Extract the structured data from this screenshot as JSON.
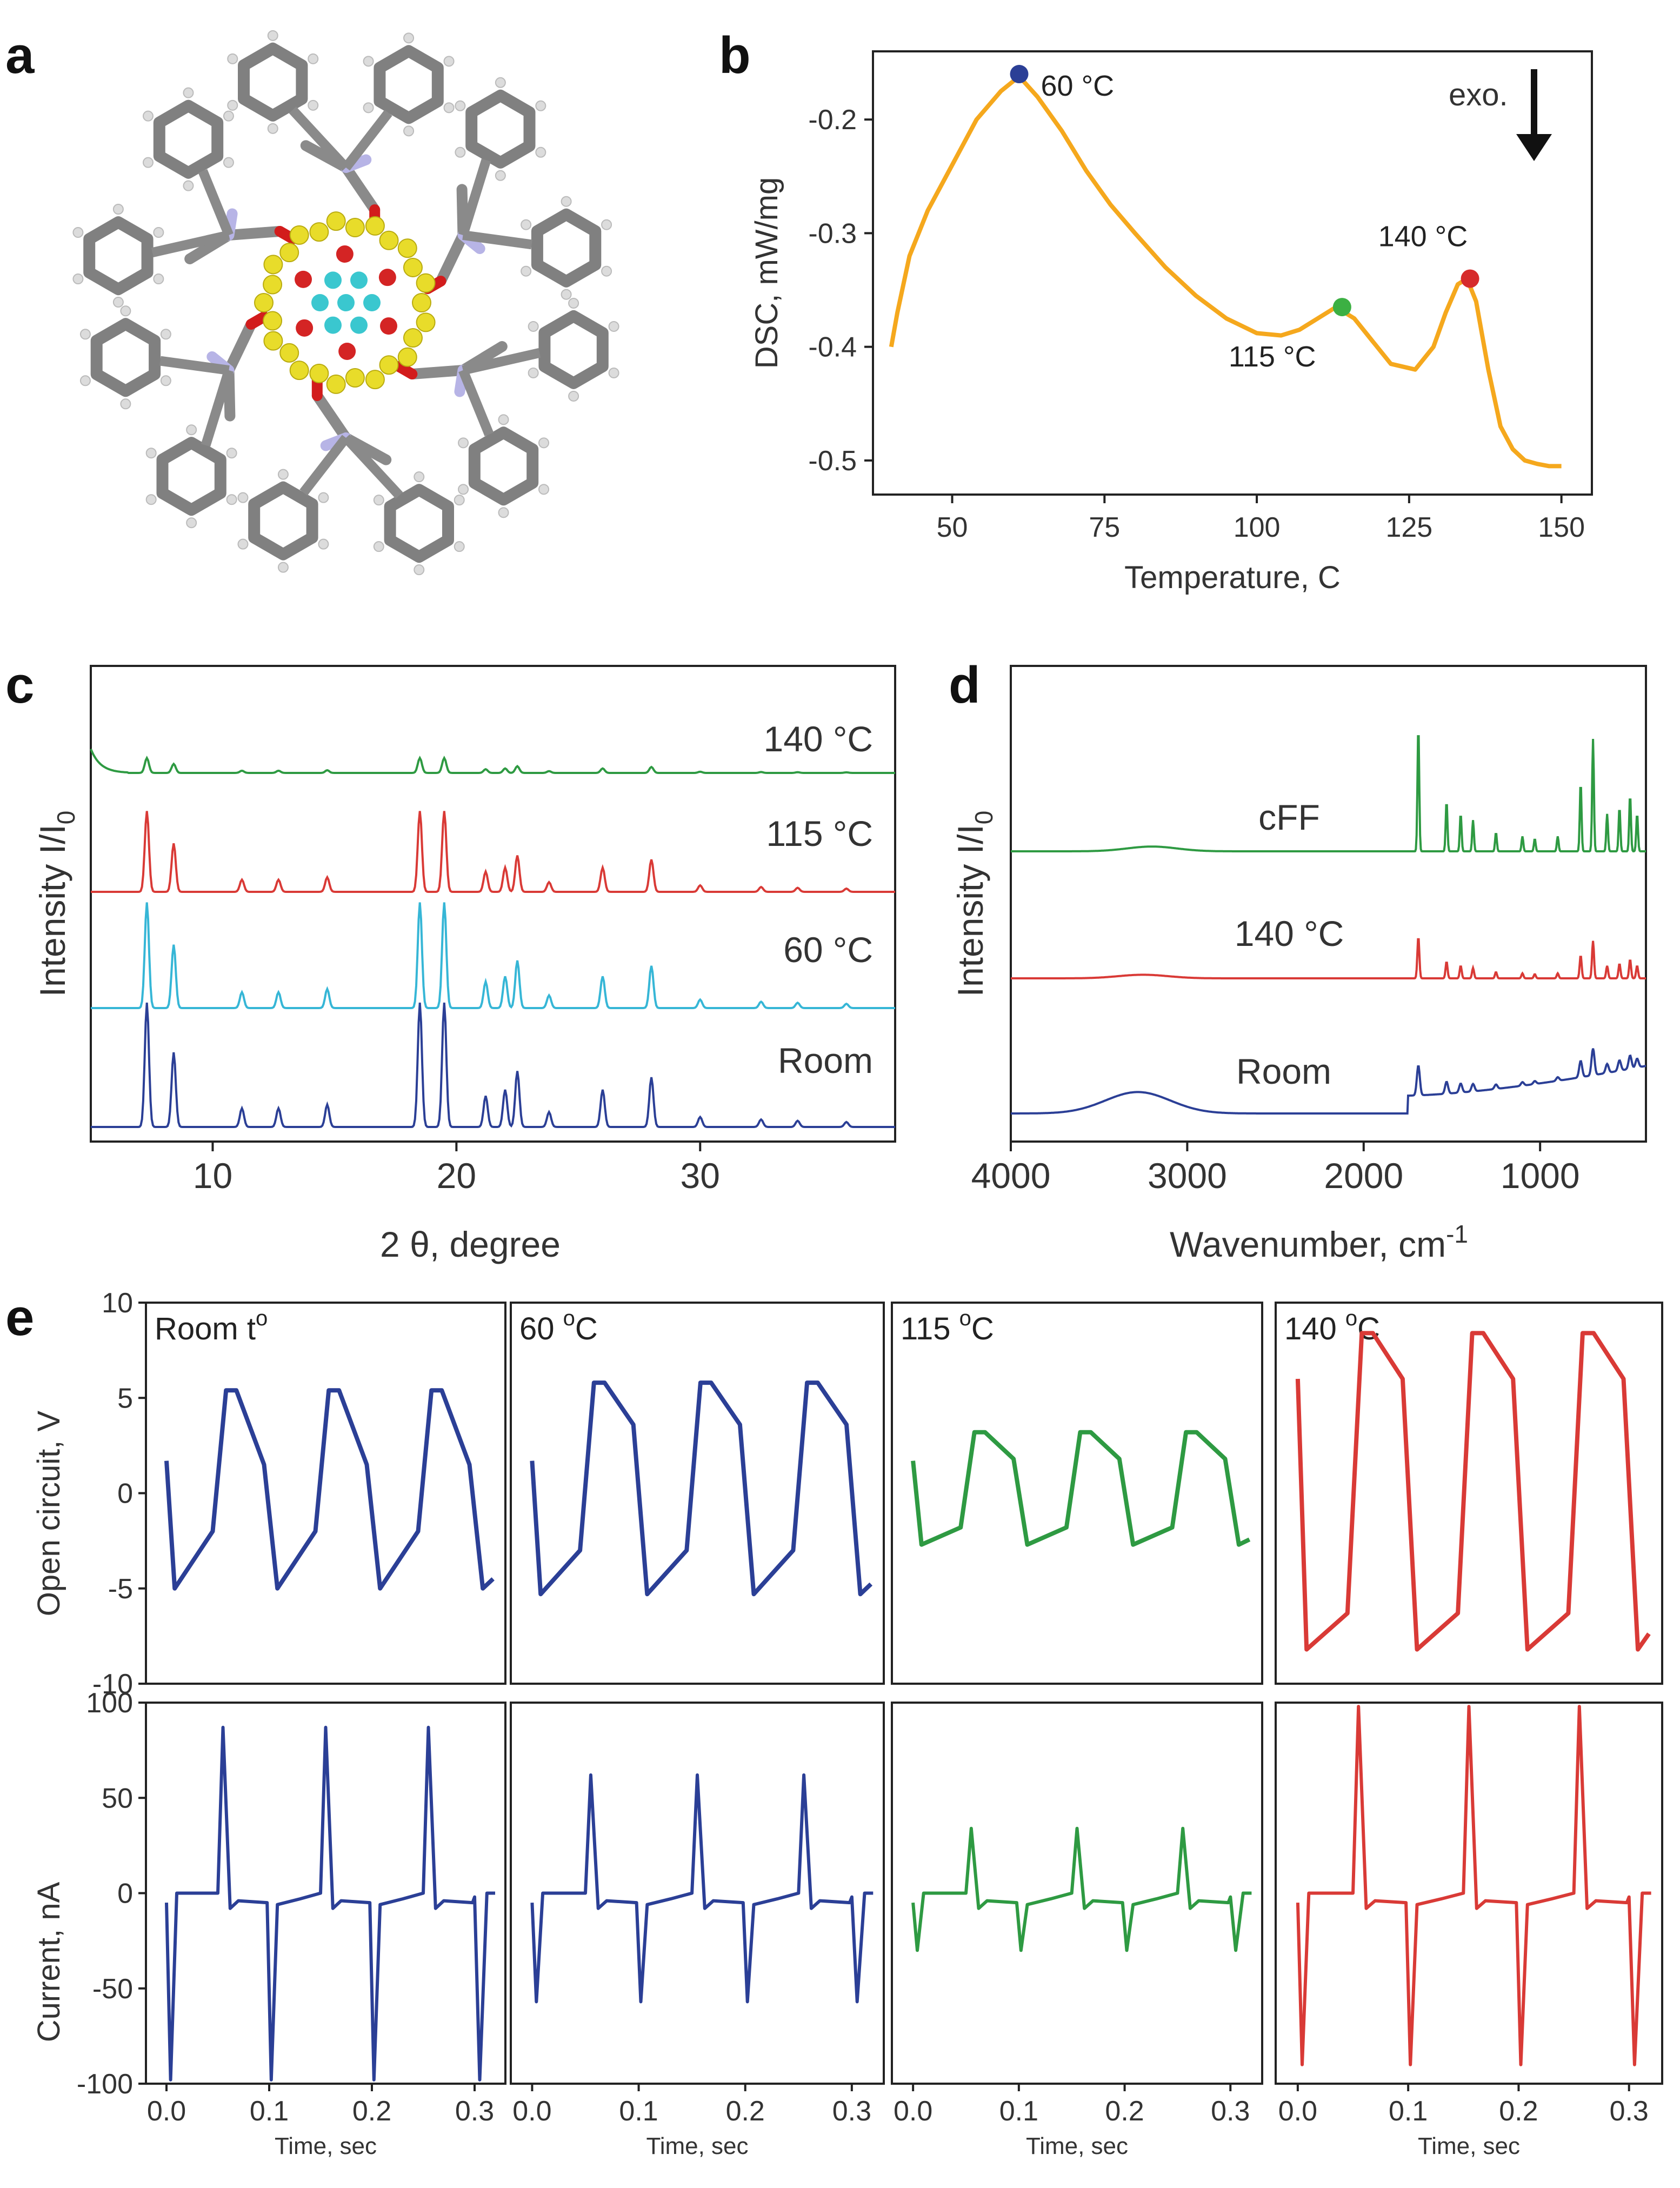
{
  "panels": {
    "a": "a",
    "b": "b",
    "c": "c",
    "d": "d",
    "e": "e"
  },
  "colors": {
    "blue": "#2b3f96",
    "cyan": "#36b6d6",
    "green": "#2e9a42",
    "red": "#d93a36",
    "orange": "#f5a81d",
    "blue_dot": "#2b3f96",
    "green_dot": "#3cb043",
    "red_dot": "#d62b2b"
  },
  "chart_data": [
    {
      "id": "b",
      "type": "line",
      "title": "",
      "xlabel": "Temperature, C",
      "ylabel": "DSC, mW/mg",
      "xlim": [
        37,
        155
      ],
      "ylim": [
        -0.53,
        -0.14
      ],
      "xticks": [
        50,
        75,
        100,
        125,
        150
      ],
      "yticks": [
        -0.2,
        -0.3,
        -0.4,
        -0.5
      ],
      "xticklabels": [
        "50",
        "75",
        "100",
        "125",
        "150"
      ],
      "yticklabels": [
        "-0.2",
        "-0.3",
        "-0.4",
        "-0.5"
      ],
      "series": [
        {
          "name": "DSC",
          "x": [
            40,
            41,
            43,
            46,
            50,
            54,
            58,
            61,
            64,
            68,
            72,
            76,
            80,
            85,
            90,
            95,
            100,
            104,
            107,
            110,
            113,
            116,
            119,
            122,
            126,
            129,
            131,
            133,
            134.5,
            136,
            138,
            140,
            142,
            144,
            146,
            148,
            150
          ],
          "y": [
            -0.4,
            -0.37,
            -0.32,
            -0.28,
            -0.24,
            -0.2,
            -0.175,
            -0.162,
            -0.18,
            -0.21,
            -0.245,
            -0.275,
            -0.3,
            -0.33,
            -0.355,
            -0.375,
            -0.388,
            -0.39,
            -0.385,
            -0.375,
            -0.365,
            -0.375,
            -0.395,
            -0.415,
            -0.42,
            -0.4,
            -0.37,
            -0.345,
            -0.34,
            -0.36,
            -0.42,
            -0.47,
            -0.49,
            -0.5,
            -0.503,
            -0.505,
            -0.505
          ]
        }
      ],
      "points": [
        {
          "label": "60 °C",
          "x": 61,
          "y": -0.16,
          "color": "#2b3f96"
        },
        {
          "label": "115 °C",
          "x": 114,
          "y": -0.365,
          "color": "#3cb043"
        },
        {
          "label": "140 °C",
          "x": 135,
          "y": -0.34,
          "color": "#d62b2b"
        }
      ],
      "annotation": "exo."
    },
    {
      "id": "c",
      "type": "line",
      "title": "",
      "xlabel": "2 θ, degree",
      "ylabel": "Intensity I/I",
      "ylabel_sub": "0",
      "xlim": [
        5,
        38
      ],
      "xticks": [
        10,
        20,
        30
      ],
      "xticklabels": [
        "10",
        "20",
        "30"
      ],
      "peaks": [
        [
          7.3,
          1.0
        ],
        [
          8.4,
          0.6
        ],
        [
          11.2,
          0.15
        ],
        [
          12.7,
          0.15
        ],
        [
          14.7,
          0.18
        ],
        [
          18.5,
          1.0
        ],
        [
          19.5,
          1.0
        ],
        [
          21.2,
          0.25
        ],
        [
          22.0,
          0.3
        ],
        [
          22.5,
          0.45
        ],
        [
          23.8,
          0.12
        ],
        [
          26.0,
          0.3
        ],
        [
          28.0,
          0.4
        ],
        [
          30.0,
          0.08
        ],
        [
          32.5,
          0.06
        ],
        [
          34.0,
          0.05
        ],
        [
          36.0,
          0.04
        ]
      ],
      "series": [
        {
          "name": "Room",
          "offset": 0,
          "scale": 1.0,
          "color": "#2b3f96"
        },
        {
          "name": "60 °C",
          "offset": 1,
          "scale": 0.85,
          "color": "#36b6d6"
        },
        {
          "name": "115 °C",
          "offset": 2,
          "scale": 0.65,
          "color": "#d93a36"
        },
        {
          "name": "140 °C",
          "offset": 3,
          "scale": 0.12,
          "color": "#2e9a42"
        }
      ]
    },
    {
      "id": "d",
      "type": "line",
      "title": "",
      "xlabel": "Wavenumber, cm",
      "xlabel_sup": "-1",
      "ylabel": "Intensity I/I",
      "ylabel_sub": "0",
      "xlim": [
        4000,
        400
      ],
      "xticks": [
        4000,
        3000,
        2000,
        1000
      ],
      "xticklabels": [
        "4000",
        "3000",
        "2000",
        "1000"
      ],
      "series": [
        {
          "name": "Room",
          "offset": 0,
          "color": "#2b3f96"
        },
        {
          "name": "140 °C",
          "offset": 1,
          "color": "#d93a36"
        },
        {
          "name": "cFF",
          "offset": 2,
          "color": "#2e9a42"
        }
      ]
    },
    {
      "id": "e",
      "type": "line",
      "title": "",
      "xlabel": "Time, sec",
      "xlim": [
        -0.02,
        0.33
      ],
      "xticks": [
        0.0,
        0.1,
        0.2,
        0.3
      ],
      "xticklabels": [
        "0.0",
        "0.1",
        "0.2",
        "0.3"
      ],
      "top": {
        "ylabel": "Open circuit, V",
        "ylim": [
          -10,
          10
        ],
        "yticks": [
          10,
          5,
          0,
          -5,
          -10
        ],
        "yticklabels": [
          "10",
          "5",
          "0",
          "-5",
          "-10"
        ]
      },
      "bottom": {
        "ylabel": "Current, nA",
        "ylim": [
          -100,
          100
        ],
        "yticks": [
          100,
          50,
          0,
          -50,
          -100
        ],
        "yticklabels": [
          "100",
          "50",
          "0",
          "-50",
          "-100"
        ]
      },
      "conditions": [
        {
          "label": "Room t",
          "label_sup": "o",
          "color": "#2b3f96",
          "v_high": 5.4,
          "v_high_end": 1.5,
          "v_low": -5.0,
          "v_low_end": -2.0,
          "i_pos": 87,
          "i_neg": -98
        },
        {
          "label": "60 ",
          "label_sup": "o",
          "label_tail": "C",
          "color": "#2b3f96",
          "v_high": 5.8,
          "v_high_end": 3.6,
          "v_low": -5.3,
          "v_low_end": -3.0,
          "i_pos": 62,
          "i_neg": -57
        },
        {
          "label": "115 ",
          "label_sup": "o",
          "label_tail": "C",
          "color": "#2e9a42",
          "v_high": 3.2,
          "v_high_end": 1.8,
          "v_low": -2.7,
          "v_low_end": -1.8,
          "i_pos": 34,
          "i_neg": -30
        },
        {
          "label": "140 ",
          "label_sup": "o",
          "label_tail": "C",
          "color": "#d93a36",
          "v_high": 8.4,
          "v_high_end": 6.0,
          "v_low": -8.2,
          "v_low_end": -6.3,
          "i_pos": 98,
          "i_neg": -90
        }
      ]
    }
  ]
}
